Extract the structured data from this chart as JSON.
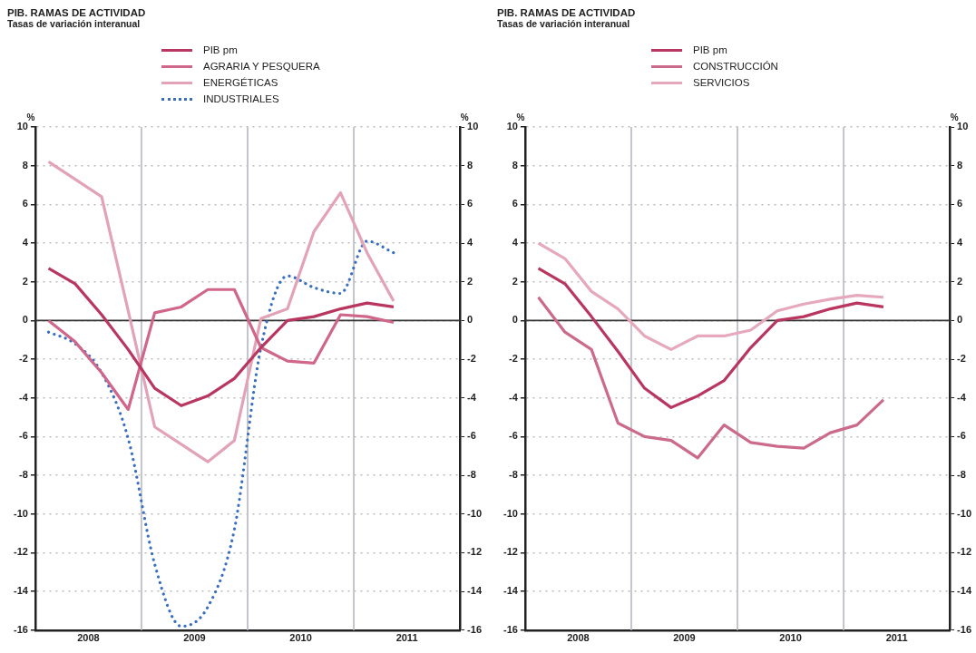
{
  "chart_data": [
    {
      "type": "line",
      "title": "PIB. RAMAS DE ACTIVIDAD",
      "subtitle": "Tasas de variación interanual",
      "annotations": [
        "%",
        "%"
      ],
      "x": [
        2008.125,
        2008.375,
        2008.625,
        2008.875,
        2009.125,
        2009.375,
        2009.625,
        2009.875,
        2010.125,
        2010.375,
        2010.625,
        2010.875,
        2011.125,
        2011.375
      ],
      "xlim": [
        2008,
        2012
      ],
      "xticks": [
        {
          "value": 2008.5,
          "label": "2008"
        },
        {
          "value": 2009.5,
          "label": "2009"
        },
        {
          "value": 2010.5,
          "label": "2010"
        },
        {
          "value": 2011.5,
          "label": "2011"
        }
      ],
      "ylim": [
        -16,
        10
      ],
      "yticks": [
        -16,
        -14,
        -12,
        -10,
        -8,
        -6,
        -4,
        -2,
        0,
        2,
        4,
        6,
        8,
        10
      ],
      "y2lim": [
        -16,
        10
      ],
      "y2ticks": [
        -16,
        -14,
        -12,
        -10,
        -8,
        -6,
        -4,
        -2,
        0,
        2,
        4,
        6,
        8,
        10
      ],
      "grid": "y",
      "legend": "top",
      "ref_lines": [
        {
          "axis": "x",
          "value": 2009,
          "color": "#c4c4cc"
        },
        {
          "axis": "x",
          "value": 2010,
          "color": "#c4c4cc"
        },
        {
          "axis": "x",
          "value": 2011,
          "color": "#c4c4cc"
        },
        {
          "axis": "y",
          "value": 0,
          "color": "#333333"
        }
      ],
      "series": [
        {
          "name": "PIB pm",
          "color": "#b8365f",
          "values": [
            2.7,
            1.9,
            0.3,
            -1.5,
            -3.5,
            -4.4,
            -3.9,
            -3.0,
            -1.4,
            0.0,
            0.2,
            0.6,
            0.9,
            0.7
          ]
        },
        {
          "name": "AGRARIA Y PESQUERA",
          "color": "#d0678a",
          "values": [
            0.0,
            -1.1,
            -2.7,
            -4.6,
            0.4,
            0.7,
            1.6,
            1.6,
            -1.4,
            -2.1,
            -2.2,
            0.3,
            0.2,
            -0.1
          ]
        },
        {
          "name": "ENERGÉTICAS",
          "color": "#e2a2b7",
          "values": [
            8.2,
            7.3,
            6.4,
            0.5,
            -5.5,
            -6.4,
            -7.3,
            -6.2,
            0.1,
            0.6,
            4.6,
            6.6,
            3.5,
            1.0
          ]
        },
        {
          "name": "INDUSTRIALES",
          "color": "#3a6fc0",
          "line_style": "dotted",
          "values": [
            -0.6,
            -1.2,
            -2.7,
            -6.1,
            -12.6,
            -15.8,
            -14.8,
            -10.8,
            -1.4,
            2.3,
            1.7,
            1.4,
            4.1,
            3.5
          ]
        }
      ]
    },
    {
      "type": "line",
      "title": "PIB. RAMAS DE ACTIVIDAD",
      "subtitle": "Tasas de variación interanual",
      "annotations": [
        "%",
        "%"
      ],
      "x": [
        2008.125,
        2008.375,
        2008.625,
        2008.875,
        2009.125,
        2009.375,
        2009.625,
        2009.875,
        2010.125,
        2010.375,
        2010.625,
        2010.875,
        2011.125,
        2011.375
      ],
      "xlim": [
        2008,
        2012
      ],
      "xticks": [
        {
          "value": 2008.5,
          "label": "2008"
        },
        {
          "value": 2009.5,
          "label": "2009"
        },
        {
          "value": 2010.5,
          "label": "2010"
        },
        {
          "value": 2011.5,
          "label": "2011"
        }
      ],
      "ylim": [
        -16,
        10
      ],
      "yticks": [
        -16,
        -14,
        -12,
        -10,
        -8,
        -6,
        -4,
        -2,
        0,
        2,
        4,
        6,
        8,
        10
      ],
      "y2lim": [
        -16,
        10
      ],
      "y2ticks": [
        -16,
        -14,
        -12,
        -10,
        -8,
        -6,
        -4,
        -2,
        0,
        2,
        4,
        6,
        8,
        10
      ],
      "grid": "y",
      "legend": "top",
      "ref_lines": [
        {
          "axis": "x",
          "value": 2009,
          "color": "#c4c4cc"
        },
        {
          "axis": "x",
          "value": 2010,
          "color": "#c4c4cc"
        },
        {
          "axis": "x",
          "value": 2011,
          "color": "#c4c4cc"
        },
        {
          "axis": "y",
          "value": 0,
          "color": "#333333"
        }
      ],
      "series": [
        {
          "name": "PIB pm",
          "color": "#b8365f",
          "values": [
            2.7,
            1.9,
            0.2,
            -1.6,
            -3.5,
            -4.5,
            -3.9,
            -3.1,
            -1.4,
            0.0,
            0.2,
            0.6,
            0.9,
            0.7
          ]
        },
        {
          "name": "CONSTRUCCIÓN",
          "color": "#cc6a8c",
          "values": [
            1.2,
            -0.6,
            -1.5,
            -5.3,
            -6.0,
            -6.2,
            -7.1,
            -5.4,
            -6.3,
            -6.5,
            -6.6,
            -5.8,
            -5.4,
            -4.1
          ]
        },
        {
          "name": "SERVICIOS",
          "color": "#e5a8bc",
          "values": [
            4.0,
            3.2,
            1.5,
            0.6,
            -0.8,
            -1.5,
            -0.8,
            -0.8,
            -0.5,
            0.5,
            0.85,
            1.1,
            1.3,
            1.2
          ]
        }
      ]
    }
  ]
}
